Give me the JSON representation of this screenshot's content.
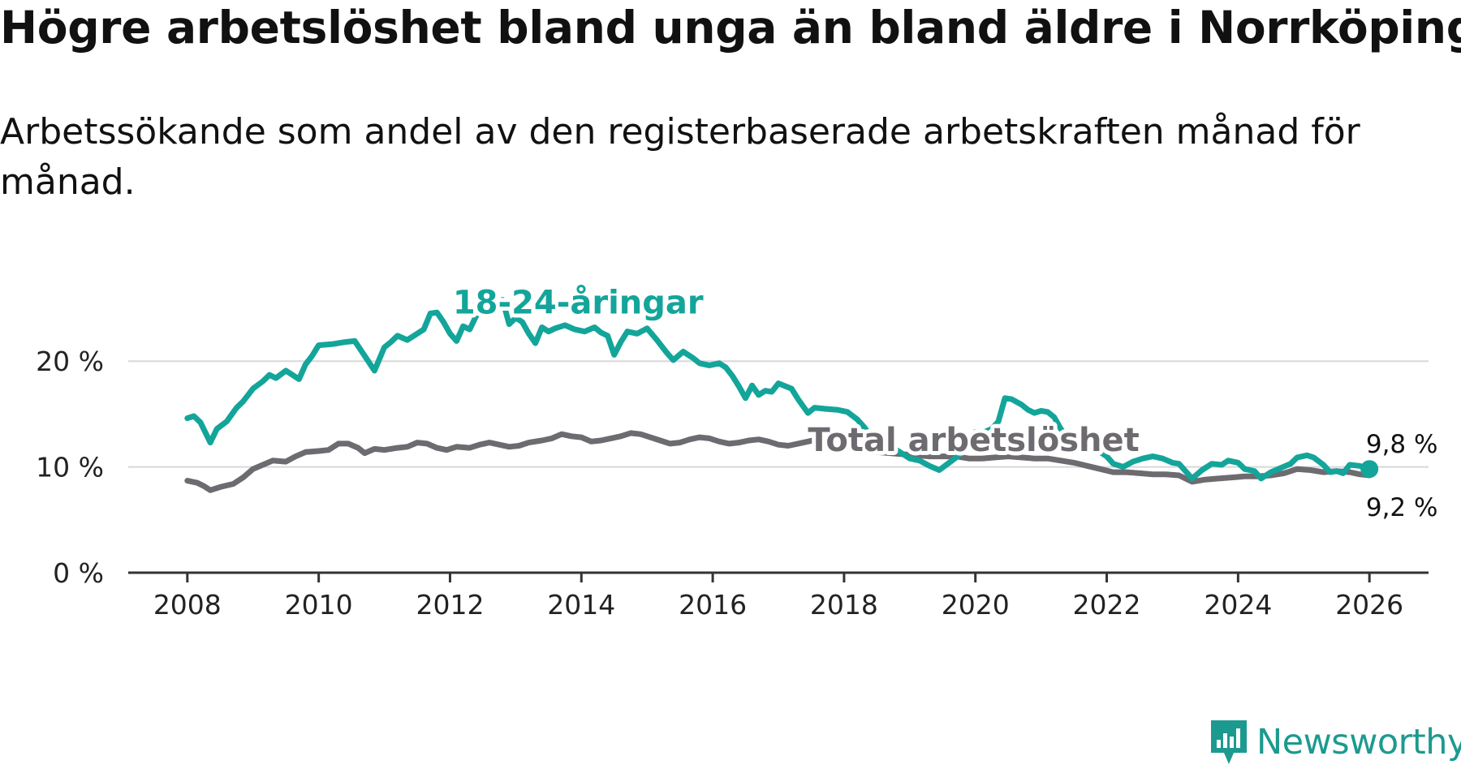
{
  "header": {
    "title": "Högre arbetslöshet bland unga än bland äldre i Norrköping",
    "subtitle": "Arbetssökande som andel av den registerbaserade arbetskraften månad för månad."
  },
  "brand": {
    "name": "Newsworthy"
  },
  "colors": {
    "youth": "#14a59a",
    "total": "#6e6b70",
    "grid": "#d8d8d8",
    "axis": "#333333",
    "label_outline": "#ffffff"
  },
  "chart_data": {
    "type": "line",
    "title": "Högre arbetslöshet bland unga än bland äldre i Norrköping",
    "subtitle": "Arbetssökande som andel av den registerbaserade arbetskraften månad för månad.",
    "xlabel": "",
    "ylabel": "",
    "xlim": [
      2007.1,
      2026.9
    ],
    "ylim": [
      0,
      25
    ],
    "x_ticks": [
      2008,
      2010,
      2012,
      2014,
      2016,
      2018,
      2020,
      2022,
      2024,
      2026
    ],
    "x_tick_labels": [
      "2008",
      "2010",
      "2012",
      "2014",
      "2016",
      "2018",
      "2020",
      "2022",
      "2024",
      "2026"
    ],
    "y_ticks": [
      0,
      10,
      20
    ],
    "y_tick_labels": [
      "0 %",
      "10 %",
      "20 %"
    ],
    "grid": true,
    "series": [
      {
        "name": "18-24-åringar",
        "label": "18-24-åringar",
        "color": "#14a59a",
        "end_label": "9,8 %",
        "points": [
          [
            2008.0,
            14.6
          ],
          [
            2008.1,
            14.8
          ],
          [
            2008.2,
            14.2
          ],
          [
            2008.35,
            12.3
          ],
          [
            2008.45,
            13.6
          ],
          [
            2008.6,
            14.3
          ],
          [
            2008.75,
            15.6
          ],
          [
            2008.85,
            16.2
          ],
          [
            2009.0,
            17.4
          ],
          [
            2009.15,
            18.1
          ],
          [
            2009.25,
            18.7
          ],
          [
            2009.35,
            18.4
          ],
          [
            2009.5,
            19.1
          ],
          [
            2009.6,
            18.7
          ],
          [
            2009.7,
            18.3
          ],
          [
            2009.8,
            19.7
          ],
          [
            2009.9,
            20.5
          ],
          [
            2010.0,
            21.5
          ],
          [
            2010.2,
            21.6
          ],
          [
            2010.4,
            21.8
          ],
          [
            2010.55,
            21.9
          ],
          [
            2010.7,
            20.5
          ],
          [
            2010.85,
            19.1
          ],
          [
            2011.0,
            21.3
          ],
          [
            2011.1,
            21.8
          ],
          [
            2011.2,
            22.4
          ],
          [
            2011.35,
            22.0
          ],
          [
            2011.5,
            22.6
          ],
          [
            2011.6,
            23.0
          ],
          [
            2011.7,
            24.5
          ],
          [
            2011.8,
            24.6
          ],
          [
            2011.9,
            23.7
          ],
          [
            2012.0,
            22.6
          ],
          [
            2012.1,
            21.9
          ],
          [
            2012.2,
            23.3
          ],
          [
            2012.3,
            23.0
          ],
          [
            2012.4,
            24.3
          ],
          [
            2012.5,
            25.4
          ],
          [
            2012.6,
            25.5
          ],
          [
            2012.7,
            25.2
          ],
          [
            2012.8,
            25.8
          ],
          [
            2012.9,
            23.5
          ],
          [
            2013.0,
            24.1
          ],
          [
            2013.1,
            23.7
          ],
          [
            2013.2,
            22.6
          ],
          [
            2013.3,
            21.7
          ],
          [
            2013.4,
            23.2
          ],
          [
            2013.5,
            22.8
          ],
          [
            2013.6,
            23.1
          ],
          [
            2013.75,
            23.4
          ],
          [
            2013.9,
            23.0
          ],
          [
            2014.05,
            22.8
          ],
          [
            2014.2,
            23.2
          ],
          [
            2014.3,
            22.7
          ],
          [
            2014.4,
            22.4
          ],
          [
            2014.5,
            20.6
          ],
          [
            2014.6,
            21.8
          ],
          [
            2014.7,
            22.8
          ],
          [
            2014.85,
            22.6
          ],
          [
            2015.0,
            23.1
          ],
          [
            2015.15,
            22.0
          ],
          [
            2015.3,
            20.8
          ],
          [
            2015.4,
            20.1
          ],
          [
            2015.55,
            20.9
          ],
          [
            2015.7,
            20.3
          ],
          [
            2015.8,
            19.8
          ],
          [
            2015.95,
            19.6
          ],
          [
            2016.1,
            19.8
          ],
          [
            2016.2,
            19.4
          ],
          [
            2016.3,
            18.6
          ],
          [
            2016.4,
            17.6
          ],
          [
            2016.5,
            16.5
          ],
          [
            2016.6,
            17.7
          ],
          [
            2016.7,
            16.8
          ],
          [
            2016.8,
            17.2
          ],
          [
            2016.9,
            17.1
          ],
          [
            2017.0,
            17.9
          ],
          [
            2017.2,
            17.4
          ],
          [
            2017.3,
            16.4
          ],
          [
            2017.45,
            15.1
          ],
          [
            2017.55,
            15.6
          ],
          [
            2017.7,
            15.5
          ],
          [
            2017.9,
            15.4
          ],
          [
            2018.05,
            15.2
          ],
          [
            2018.2,
            14.5
          ],
          [
            2018.3,
            13.8
          ],
          [
            2018.4,
            13.0
          ],
          [
            2018.55,
            12.6
          ],
          [
            2018.7,
            12.0
          ],
          [
            2018.85,
            11.4
          ],
          [
            2019.0,
            10.8
          ],
          [
            2019.15,
            10.6
          ],
          [
            2019.3,
            10.1
          ],
          [
            2019.45,
            9.7
          ],
          [
            2019.6,
            10.4
          ],
          [
            2019.75,
            11.1
          ],
          [
            2019.9,
            12.0
          ],
          [
            2020.0,
            13.3
          ],
          [
            2020.1,
            13.2
          ],
          [
            2020.25,
            13.6
          ],
          [
            2020.35,
            14.3
          ],
          [
            2020.45,
            16.5
          ],
          [
            2020.55,
            16.4
          ],
          [
            2020.7,
            15.9
          ],
          [
            2020.8,
            15.4
          ],
          [
            2020.9,
            15.1
          ],
          [
            2021.0,
            15.3
          ],
          [
            2021.1,
            15.2
          ],
          [
            2021.2,
            14.7
          ],
          [
            2021.3,
            13.6
          ],
          [
            2021.4,
            12.8
          ],
          [
            2021.55,
            12.4
          ],
          [
            2021.7,
            12.0
          ],
          [
            2021.85,
            11.6
          ],
          [
            2022.0,
            11.0
          ],
          [
            2022.1,
            10.3
          ],
          [
            2022.25,
            10.0
          ],
          [
            2022.4,
            10.5
          ],
          [
            2022.55,
            10.8
          ],
          [
            2022.7,
            11.0
          ],
          [
            2022.85,
            10.8
          ],
          [
            2023.0,
            10.4
          ],
          [
            2023.1,
            10.3
          ],
          [
            2023.2,
            9.6
          ],
          [
            2023.3,
            8.9
          ],
          [
            2023.45,
            9.7
          ],
          [
            2023.6,
            10.3
          ],
          [
            2023.75,
            10.2
          ],
          [
            2023.85,
            10.6
          ],
          [
            2024.0,
            10.4
          ],
          [
            2024.1,
            9.8
          ],
          [
            2024.25,
            9.6
          ],
          [
            2024.35,
            8.9
          ],
          [
            2024.5,
            9.5
          ],
          [
            2024.65,
            9.9
          ],
          [
            2024.8,
            10.3
          ],
          [
            2024.9,
            10.9
          ],
          [
            2025.05,
            11.1
          ],
          [
            2025.15,
            10.9
          ],
          [
            2025.3,
            10.2
          ],
          [
            2025.4,
            9.5
          ],
          [
            2025.5,
            9.6
          ],
          [
            2025.6,
            9.4
          ],
          [
            2025.7,
            10.2
          ],
          [
            2025.85,
            10.1
          ],
          [
            2026.0,
            9.8
          ]
        ]
      },
      {
        "name": "Total arbetslöshet",
        "label": "Total arbetslöshet",
        "color": "#6e6b70",
        "end_label": "9,2 %",
        "points": [
          [
            2008.0,
            8.7
          ],
          [
            2008.15,
            8.5
          ],
          [
            2008.25,
            8.2
          ],
          [
            2008.35,
            7.8
          ],
          [
            2008.5,
            8.1
          ],
          [
            2008.7,
            8.4
          ],
          [
            2008.85,
            9.0
          ],
          [
            2009.0,
            9.8
          ],
          [
            2009.15,
            10.2
          ],
          [
            2009.3,
            10.6
          ],
          [
            2009.5,
            10.5
          ],
          [
            2009.65,
            11.0
          ],
          [
            2009.8,
            11.4
          ],
          [
            2010.0,
            11.5
          ],
          [
            2010.15,
            11.6
          ],
          [
            2010.3,
            12.2
          ],
          [
            2010.45,
            12.2
          ],
          [
            2010.6,
            11.8
          ],
          [
            2010.7,
            11.3
          ],
          [
            2010.85,
            11.7
          ],
          [
            2011.0,
            11.6
          ],
          [
            2011.2,
            11.8
          ],
          [
            2011.35,
            11.9
          ],
          [
            2011.5,
            12.3
          ],
          [
            2011.65,
            12.2
          ],
          [
            2011.8,
            11.8
          ],
          [
            2011.95,
            11.6
          ],
          [
            2012.1,
            11.9
          ],
          [
            2012.3,
            11.8
          ],
          [
            2012.45,
            12.1
          ],
          [
            2012.6,
            12.3
          ],
          [
            2012.75,
            12.1
          ],
          [
            2012.9,
            11.9
          ],
          [
            2013.05,
            12.0
          ],
          [
            2013.2,
            12.3
          ],
          [
            2013.4,
            12.5
          ],
          [
            2013.55,
            12.7
          ],
          [
            2013.7,
            13.1
          ],
          [
            2013.85,
            12.9
          ],
          [
            2014.0,
            12.8
          ],
          [
            2014.15,
            12.4
          ],
          [
            2014.3,
            12.5
          ],
          [
            2014.45,
            12.7
          ],
          [
            2014.6,
            12.9
          ],
          [
            2014.75,
            13.2
          ],
          [
            2014.9,
            13.1
          ],
          [
            2015.05,
            12.8
          ],
          [
            2015.2,
            12.5
          ],
          [
            2015.35,
            12.2
          ],
          [
            2015.5,
            12.3
          ],
          [
            2015.65,
            12.6
          ],
          [
            2015.8,
            12.8
          ],
          [
            2015.95,
            12.7
          ],
          [
            2016.1,
            12.4
          ],
          [
            2016.25,
            12.2
          ],
          [
            2016.4,
            12.3
          ],
          [
            2016.55,
            12.5
          ],
          [
            2016.7,
            12.6
          ],
          [
            2016.85,
            12.4
          ],
          [
            2017.0,
            12.1
          ],
          [
            2017.15,
            12.0
          ],
          [
            2017.3,
            12.2
          ],
          [
            2017.45,
            12.4
          ],
          [
            2017.6,
            12.6
          ],
          [
            2017.75,
            12.5
          ],
          [
            2017.9,
            12.2
          ],
          [
            2018.05,
            12.0
          ],
          [
            2018.2,
            11.8
          ],
          [
            2018.35,
            11.6
          ],
          [
            2018.5,
            11.4
          ],
          [
            2018.7,
            11.3
          ],
          [
            2018.9,
            11.2
          ],
          [
            2019.1,
            11.1
          ],
          [
            2019.3,
            11.0
          ],
          [
            2019.5,
            11.0
          ],
          [
            2019.7,
            11.0
          ],
          [
            2019.9,
            10.8
          ],
          [
            2020.1,
            10.8
          ],
          [
            2020.3,
            10.9
          ],
          [
            2020.5,
            11.0
          ],
          [
            2020.7,
            10.9
          ],
          [
            2020.9,
            10.8
          ],
          [
            2021.1,
            10.8
          ],
          [
            2021.3,
            10.6
          ],
          [
            2021.5,
            10.4
          ],
          [
            2021.7,
            10.1
          ],
          [
            2021.9,
            9.8
          ],
          [
            2022.1,
            9.5
          ],
          [
            2022.3,
            9.5
          ],
          [
            2022.5,
            9.4
          ],
          [
            2022.7,
            9.3
          ],
          [
            2022.9,
            9.3
          ],
          [
            2023.1,
            9.2
          ],
          [
            2023.3,
            8.6
          ],
          [
            2023.5,
            8.8
          ],
          [
            2023.7,
            8.9
          ],
          [
            2023.9,
            9.0
          ],
          [
            2024.1,
            9.1
          ],
          [
            2024.3,
            9.1
          ],
          [
            2024.5,
            9.2
          ],
          [
            2024.7,
            9.4
          ],
          [
            2024.9,
            9.8
          ],
          [
            2025.1,
            9.7
          ],
          [
            2025.3,
            9.5
          ],
          [
            2025.5,
            9.6
          ],
          [
            2025.7,
            9.5
          ],
          [
            2025.85,
            9.3
          ],
          [
            2026.0,
            9.2
          ]
        ]
      }
    ]
  }
}
